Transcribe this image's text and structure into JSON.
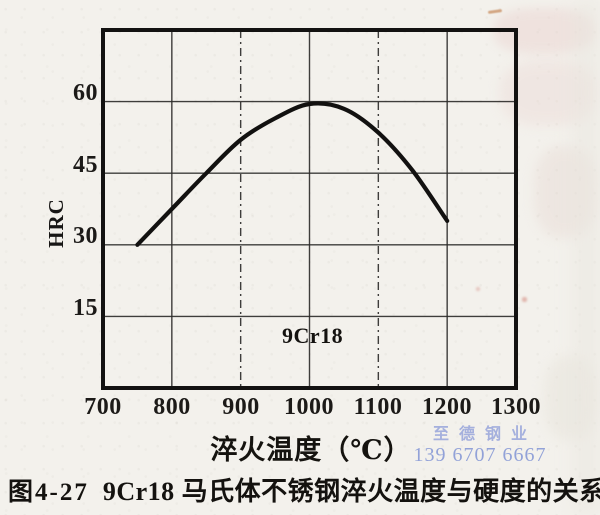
{
  "chart_data": {
    "type": "line",
    "title": "",
    "xlabel": "淬火温度（℃）",
    "ylabel": "HRC",
    "xlim": [
      700,
      1300
    ],
    "ylim": [
      0,
      75
    ],
    "x_ticks": [
      700,
      800,
      900,
      1000,
      1100,
      1200,
      1300
    ],
    "y_ticks": [
      15,
      30,
      45,
      60
    ],
    "grid": true,
    "legend_position": "none",
    "dash_dot_x_gridlines": [
      900,
      1100
    ],
    "annotation": "9Cr18",
    "series": [
      {
        "name": "9Cr18",
        "x": [
          750,
          800,
          850,
          900,
          950,
          1000,
          1050,
          1100,
          1150,
          1200
        ],
        "y": [
          30,
          37.5,
          45,
          52,
          56.5,
          59.5,
          58.5,
          53.5,
          45.5,
          35
        ],
        "color": "#121110"
      }
    ]
  },
  "caption": {
    "prefix": "图4-27",
    "text": "9Cr18 马氏体不锈钢淬火温度与硬度的关系"
  },
  "watermark": {
    "line1": "至德钢业",
    "line2": "139 6707 6667",
    "color": "#92a5dc"
  }
}
